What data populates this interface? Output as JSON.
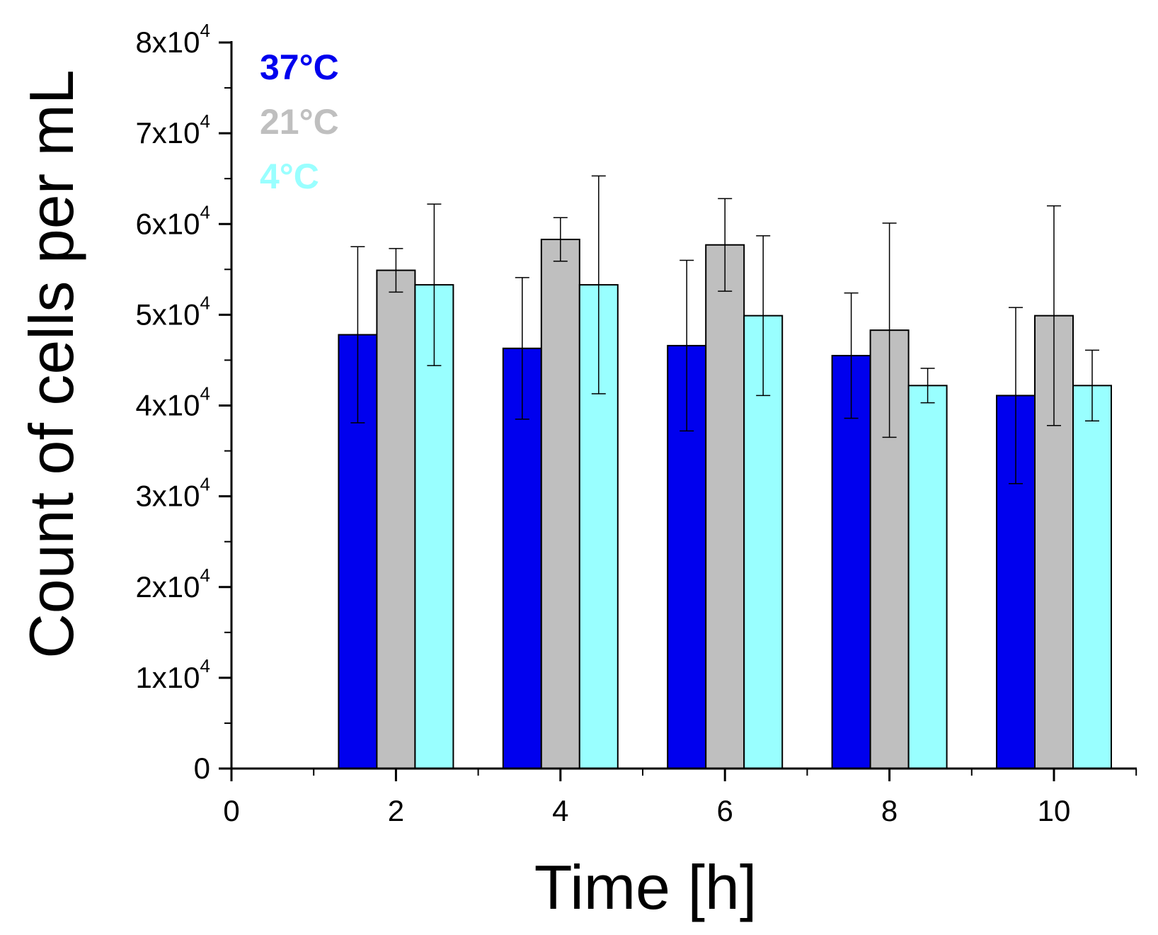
{
  "chart_data": {
    "type": "bar",
    "title": "",
    "xlabel": "Time [h]",
    "ylabel": "Count of cells per mL",
    "x_ticks": [
      0,
      2,
      4,
      6,
      8,
      10
    ],
    "xlim": [
      0,
      11
    ],
    "ylim": [
      0,
      80000
    ],
    "y_ticks": [
      {
        "value": 0,
        "label": "0",
        "sup": ""
      },
      {
        "value": 10000,
        "label": "1x10",
        "sup": "4"
      },
      {
        "value": 20000,
        "label": "2x10",
        "sup": "4"
      },
      {
        "value": 30000,
        "label": "3x10",
        "sup": "4"
      },
      {
        "value": 40000,
        "label": "4x10",
        "sup": "4"
      },
      {
        "value": 50000,
        "label": "5x10",
        "sup": "4"
      },
      {
        "value": 60000,
        "label": "6x10",
        "sup": "4"
      },
      {
        "value": 70000,
        "label": "7x10",
        "sup": "4"
      },
      {
        "value": 80000,
        "label": "8x10",
        "sup": "4"
      }
    ],
    "grid": false,
    "legend_position": "top-left",
    "categories": [
      2,
      4,
      6,
      8,
      10
    ],
    "series": [
      {
        "name": "37°C",
        "color": "#0000ee",
        "values": [
          47800,
          46300,
          46600,
          45500,
          41100
        ],
        "errors": [
          9700,
          7800,
          9400,
          6900,
          9700
        ]
      },
      {
        "name": "21°C",
        "color": "#bfbfbf",
        "values": [
          54900,
          58300,
          57700,
          48300,
          49900
        ],
        "errors": [
          2400,
          2400,
          5100,
          11800,
          12100
        ]
      },
      {
        "name": "4°C",
        "color": "#99ffff",
        "values": [
          53300,
          53300,
          49900,
          42200,
          42200
        ],
        "errors": [
          8900,
          12000,
          8800,
          1900,
          3900
        ]
      }
    ]
  }
}
